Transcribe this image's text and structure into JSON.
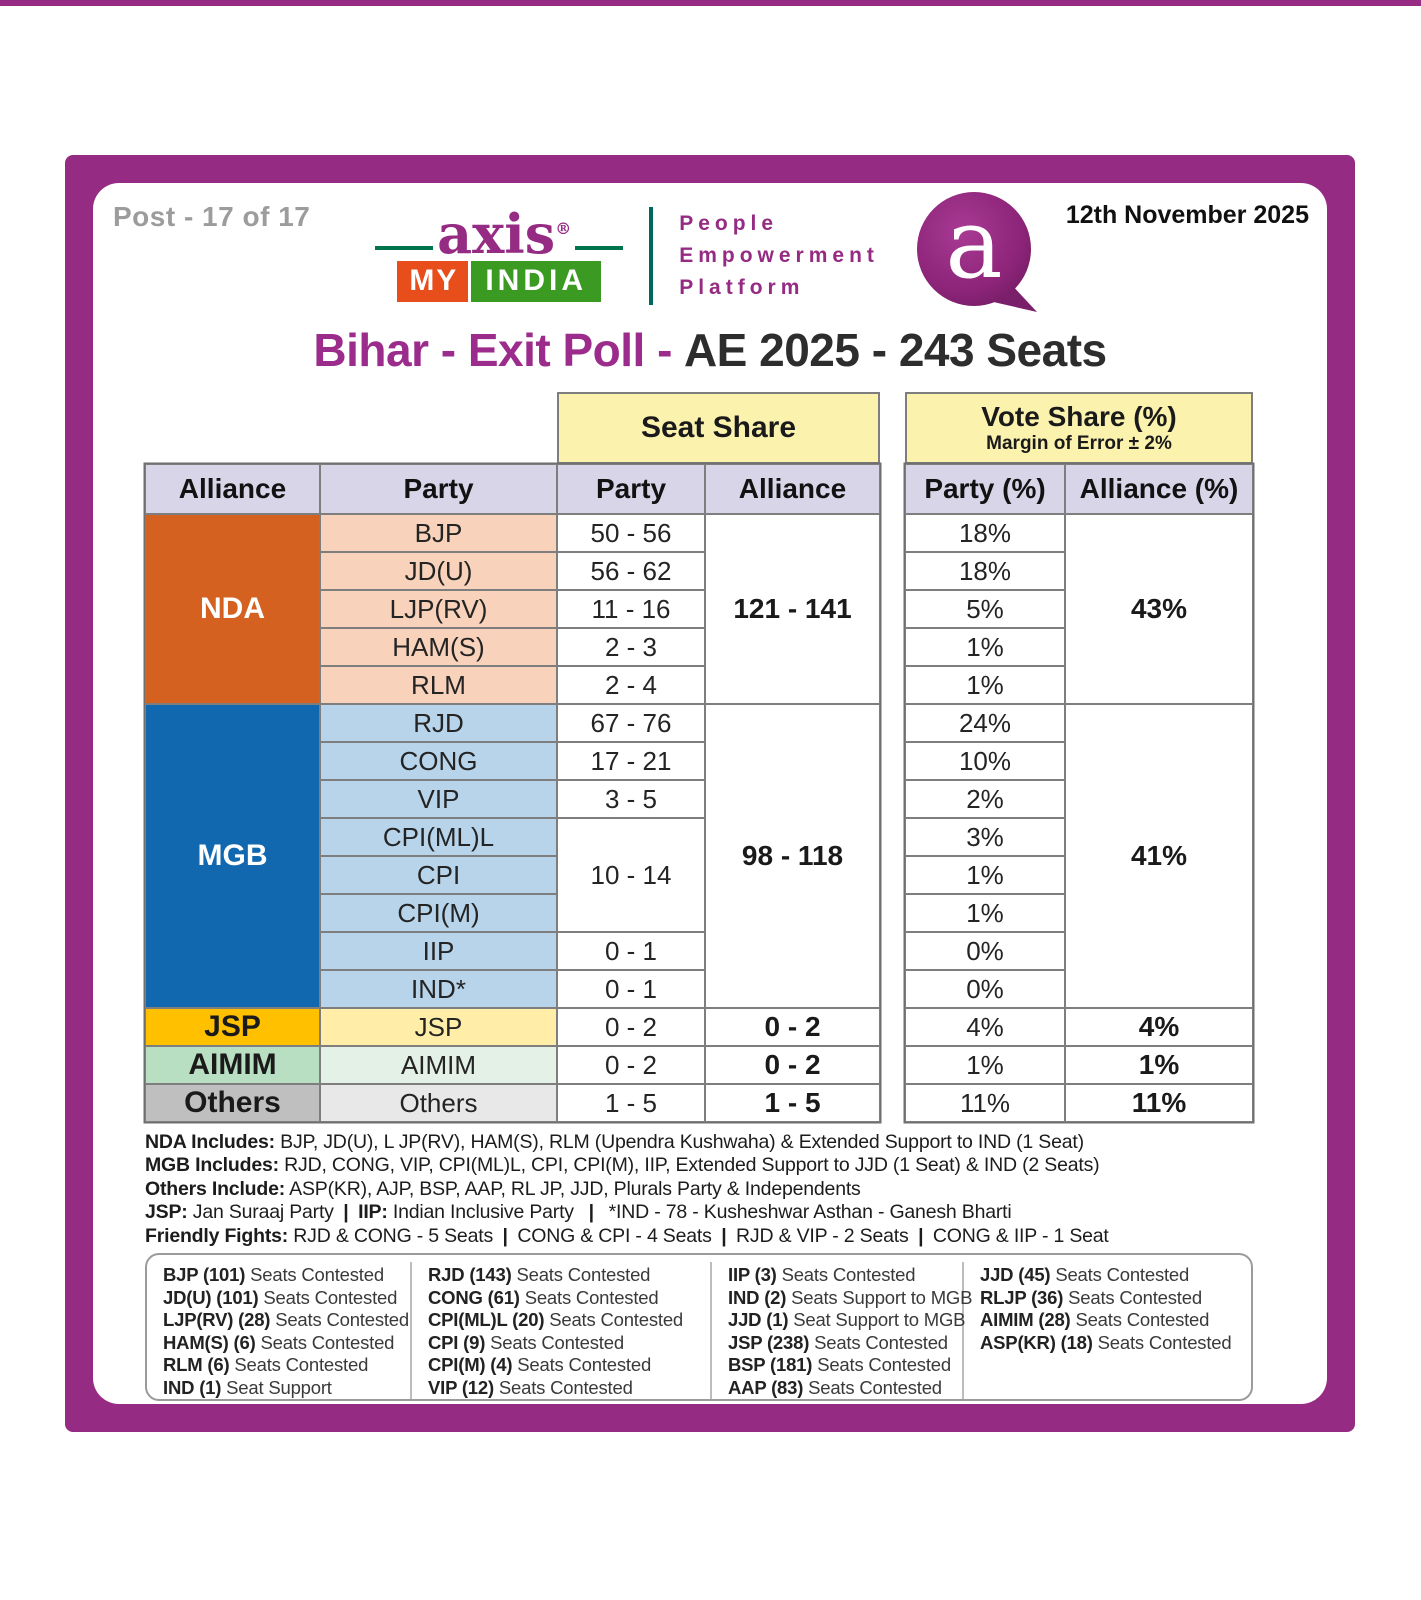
{
  "header": {
    "post_label": "Post - 17 of 17",
    "date": "12th November 2025",
    "logo": {
      "brand": "axis",
      "reg_mark": "®",
      "sub_left": "MY",
      "sub_right": "INDIA",
      "tagline_lines": [
        "People",
        "Empowerment",
        "Platform"
      ],
      "bubble_letter": "a",
      "brand_color": "#952b82",
      "my_box_color": "#e84e1b",
      "india_box_color": "#3a9a22"
    }
  },
  "title": {
    "highlight": "Bihar - Exit Poll -",
    "rest": "AE 2025 - 243 Seats"
  },
  "table": {
    "group_headers": {
      "seat_share": "Seat Share",
      "vote_share_line1": "Vote Share (%)",
      "vote_share_line2": "Margin of Error ± 2%"
    },
    "columns": {
      "alliance": "Alliance",
      "party": "Party",
      "seat_party": "Party",
      "seat_alliance": "Alliance",
      "vote_party": "Party (%)",
      "vote_alliance": "Alliance (%)"
    },
    "alliances": [
      {
        "name": "NDA",
        "color": "#d4611f",
        "party_bg": "#f8d2ba",
        "name_color": "#ffffff",
        "seat_range": "121 - 141",
        "vote_share": "43%",
        "parties": [
          {
            "name": "BJP",
            "seats": "50 - 56",
            "vote": "18%"
          },
          {
            "name": "JD(U)",
            "seats": "56 - 62",
            "vote": "18%"
          },
          {
            "name": "LJP(RV)",
            "seats": "11 - 16",
            "vote": "5%"
          },
          {
            "name": "HAM(S)",
            "seats": "2 - 3",
            "vote": "1%"
          },
          {
            "name": "RLM",
            "seats": "2 - 4",
            "vote": "1%"
          }
        ]
      },
      {
        "name": "MGB",
        "color": "#1168af",
        "party_bg": "#b7d4ea",
        "name_color": "#ffffff",
        "seat_range": "98 - 118",
        "vote_share": "41%",
        "parties": [
          {
            "name": "RJD",
            "seats": "67 - 76",
            "vote": "24%"
          },
          {
            "name": "CONG",
            "seats": "17 - 21",
            "vote": "10%"
          },
          {
            "name": "VIP",
            "seats": "3 - 5",
            "vote": "2%"
          },
          {
            "name": "CPI(ML)L",
            "seats": "10 - 14",
            "seats_rowspan": 3,
            "vote": "3%"
          },
          {
            "name": "CPI",
            "seats": null,
            "vote": "1%"
          },
          {
            "name": "CPI(M)",
            "seats": null,
            "vote": "1%"
          },
          {
            "name": "IIP",
            "seats": "0 - 1",
            "vote": "0%"
          },
          {
            "name": "IND*",
            "seats": "0 - 1",
            "vote": "0%"
          }
        ]
      },
      {
        "name": "JSP",
        "color": "#ffc000",
        "party_bg": "#ffeda8",
        "name_color": "#1a1a1a",
        "seat_range": "0 - 2",
        "vote_share": "4%",
        "parties": [
          {
            "name": "JSP",
            "seats": "0 - 2",
            "vote": "4%"
          }
        ]
      },
      {
        "name": "AIMIM",
        "color": "#b9dfc3",
        "party_bg": "#e4f1e6",
        "name_color": "#1a1a1a",
        "seat_range": "0 - 2",
        "vote_share": "1%",
        "parties": [
          {
            "name": "AIMIM",
            "seats": "0 - 2",
            "vote": "1%"
          }
        ]
      },
      {
        "name": "Others",
        "color": "#bfbfbf",
        "party_bg": "#e9e8e8",
        "name_color": "#1a1a1a",
        "seat_range": "1 - 5",
        "vote_share": "11%",
        "parties": [
          {
            "name": "Others",
            "seats": "1 - 5",
            "vote": "11%"
          }
        ]
      }
    ]
  },
  "footnotes": [
    {
      "segments": [
        {
          "text": "NDA Includes:",
          "bold": true
        },
        {
          "text": " BJP, JD(U), L JP(RV), HAM(S), RLM (Upendra Kushwaha) & Extended Support to IND (1 Seat)",
          "bold": false
        }
      ]
    },
    {
      "segments": [
        {
          "text": "MGB Includes:",
          "bold": true
        },
        {
          "text": " RJD, CONG, VIP, CPI(ML)L, CPI, CPI(M), IIP, Extended Support to JJD (1 Seat) & IND (2 Seats)",
          "bold": false
        }
      ]
    },
    {
      "segments": [
        {
          "text": "Others Include:",
          "bold": true
        },
        {
          "text": " ASP(KR), AJP, BSP, AAP, RL JP, JJD, Plurals Party & Independents",
          "bold": false
        }
      ]
    },
    {
      "segments": [
        {
          "text": "JSP:",
          "bold": true
        },
        {
          "text": " Jan Suraaj Party ",
          "bold": false
        },
        {
          "text": "|",
          "bold": true
        },
        {
          "text": " ",
          "bold": false
        },
        {
          "text": "IIP:",
          "bold": true
        },
        {
          "text": " Indian Inclusive Party  ",
          "bold": false
        },
        {
          "text": "|",
          "bold": true
        },
        {
          "text": "  *IND - 78 - Kusheshwar Asthan - Ganesh Bharti",
          "bold": false
        }
      ]
    },
    {
      "segments": [
        {
          "text": "Friendly Fights:",
          "bold": true
        },
        {
          "text": " RJD & CONG - 5 Seats ",
          "bold": false
        },
        {
          "text": "|",
          "bold": true
        },
        {
          "text": " CONG & CPI - 4 Seats ",
          "bold": false
        },
        {
          "text": "|",
          "bold": true
        },
        {
          "text": " RJD & VIP - 2 Seats ",
          "bold": false
        },
        {
          "text": "|",
          "bold": true
        },
        {
          "text": " CONG & IIP - 1 Seat",
          "bold": false
        }
      ]
    }
  ],
  "contested_box": {
    "columns": [
      {
        "lines": [
          {
            "bold": "BJP (101)",
            "rest": "Seats Contested"
          },
          {
            "bold": "JD(U) (101)",
            "rest": "Seats Contested"
          },
          {
            "bold": "LJP(RV) (28)",
            "rest": "Seats Contested"
          },
          {
            "bold": "HAM(S) (6)",
            "rest": "Seats Contested"
          },
          {
            "bold": "RLM (6)",
            "rest": "Seats Contested"
          },
          {
            "bold": "IND (1)",
            "rest": "Seat Support"
          }
        ]
      },
      {
        "lines": [
          {
            "bold": "RJD (143)",
            "rest": "Seats Contested"
          },
          {
            "bold": "CONG (61)",
            "rest": "Seats Contested"
          },
          {
            "bold": "CPI(ML)L (20)",
            "rest": "Seats Contested"
          },
          {
            "bold": "CPI (9)",
            "rest": "Seats Contested"
          },
          {
            "bold": "CPI(M) (4)",
            "rest": "Seats Contested"
          },
          {
            "bold": "VIP (12)",
            "rest": "Seats Contested"
          }
        ]
      },
      {
        "lines": [
          {
            "bold": "IIP (3)",
            "rest": "Seats Contested"
          },
          {
            "bold": "IND (2)",
            "rest": "Seats Support to MGB"
          },
          {
            "bold": "JJD (1)",
            "rest": "Seat Support to MGB"
          },
          {
            "bold": "JSP (238)",
            "rest": "Seats Contested"
          },
          {
            "bold": "BSP (181)",
            "rest": "Seats Contested"
          },
          {
            "bold": "AAP (83)",
            "rest": "Seats Contested"
          }
        ]
      },
      {
        "lines": [
          {
            "bold": "JJD (45)",
            "rest": "Seats Contested"
          },
          {
            "bold": "RLJP (36)",
            "rest": "Seats Contested"
          },
          {
            "bold": "AIMIM (28)",
            "rest": "Seats Contested"
          },
          {
            "bold": "ASP(KR) (18)",
            "rest": "Seats Contested"
          }
        ]
      }
    ]
  },
  "colors": {
    "frame_purple": "#952b82",
    "title_purple": "#9b2c8c",
    "header_yellow": "#fbf2ae",
    "header_lavender": "#d8d5e9",
    "gridline_gray": "#7e7e7e"
  }
}
